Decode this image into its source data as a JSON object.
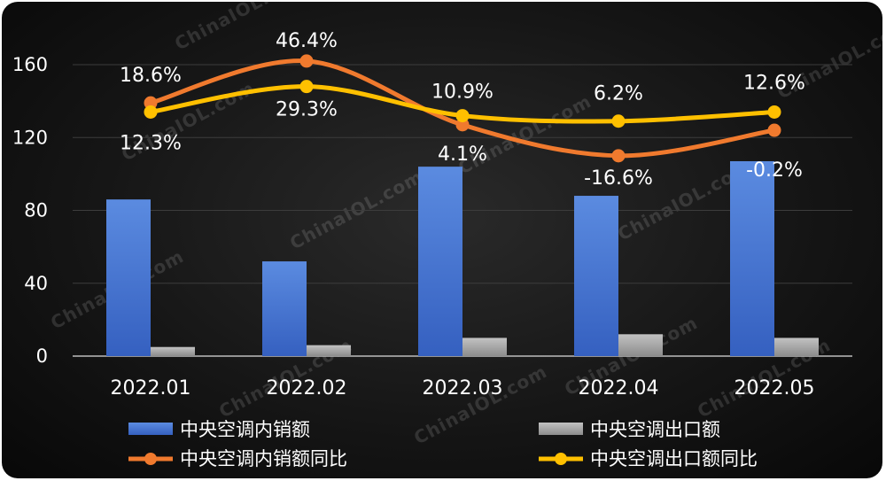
{
  "chart_data": {
    "type": "bar",
    "categories": [
      "2022.01",
      "2022.02",
      "2022.03",
      "2022.04",
      "2022.05"
    ],
    "ylim": [
      0,
      170
    ],
    "yticks": [
      0,
      40,
      80,
      120,
      160
    ],
    "grid": true,
    "legend_position": "bottom",
    "series": [
      {
        "name": "中央空调内销额",
        "kind": "bar",
        "color": "#4a78d4",
        "values": [
          86,
          52,
          104,
          88,
          107
        ]
      },
      {
        "name": "中央空调出口额",
        "kind": "bar",
        "color": "#9a9a9a",
        "values": [
          5,
          6,
          10,
          12,
          10
        ]
      },
      {
        "name": "中央空调内销额同比",
        "kind": "line",
        "color": "#f07a2e",
        "values": [
          139,
          162,
          127,
          110,
          124
        ],
        "labels": [
          "18.6%",
          "46.4%",
          "4.1%",
          "-16.6%",
          "-0.2%"
        ]
      },
      {
        "name": "中央空调出口额同比",
        "kind": "line",
        "color": "#ffc000",
        "values": [
          134,
          148,
          132,
          129,
          134
        ],
        "labels": [
          "12.3%",
          "29.3%",
          "10.9%",
          "6.2%",
          "12.6%"
        ]
      }
    ]
  },
  "watermark": "ChinaIOL.com"
}
